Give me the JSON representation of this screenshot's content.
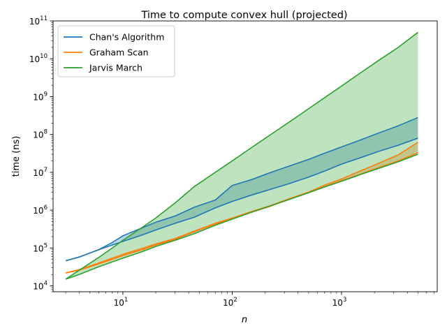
{
  "chart_data": {
    "type": "line",
    "title": "Time to compute convex hull (projected)",
    "xlabel": "n",
    "ylabel": "time (ns)",
    "xscale": "log",
    "yscale": "log",
    "xlim": [
      2.3,
      7500
    ],
    "ylim": [
      7000,
      100000000000
    ],
    "x_ticks": [
      {
        "value": 10,
        "base": "10",
        "exp": "1"
      },
      {
        "value": 100,
        "base": "10",
        "exp": "2"
      },
      {
        "value": 1000,
        "base": "10",
        "exp": "3"
      }
    ],
    "y_ticks": [
      {
        "value": 10000,
        "base": "10",
        "exp": "4"
      },
      {
        "value": 100000,
        "base": "10",
        "exp": "5"
      },
      {
        "value": 1000000,
        "base": "10",
        "exp": "6"
      },
      {
        "value": 10000000,
        "base": "10",
        "exp": "7"
      },
      {
        "value": 100000000,
        "base": "10",
        "exp": "8"
      },
      {
        "value": 1000000000,
        "base": "10",
        "exp": "9"
      },
      {
        "value": 10000000000,
        "base": "10",
        "exp": "10"
      },
      {
        "value": 100000000000,
        "base": "10",
        "exp": "11"
      }
    ],
    "grid": false,
    "legend_position": "top-left",
    "series": [
      {
        "name": "Chan's Algorithm",
        "color": "#1f77b4",
        "fill_alpha": 0.3,
        "x": [
          3,
          4,
          6,
          8,
          10,
          15,
          20,
          30,
          45,
          70,
          100,
          150,
          220,
          330,
          500,
          700,
          1000,
          1500,
          2200,
          3300,
          5000
        ],
        "upper": [
          46000,
          58000,
          90000,
          140000,
          210000,
          340000,
          480000,
          700000,
          1200000,
          1850000,
          4500000,
          6400000,
          9700000,
          14500000,
          22000000,
          32000000,
          47000000,
          72000000,
          110000000,
          170000000,
          280000000
        ],
        "lower": [
          46000,
          58000,
          90000,
          120000,
          150000,
          220000,
          300000,
          450000,
          650000,
          1150000,
          1700000,
          2500000,
          3500000,
          5000000,
          7500000,
          10800000,
          16500000,
          24500000,
          36000000,
          52000000,
          80000000
        ]
      },
      {
        "name": "Graham Scan",
        "color": "#ff7f0e",
        "fill_alpha": 0.3,
        "x": [
          3,
          4,
          6,
          8,
          10,
          15,
          20,
          30,
          45,
          70,
          100,
          150,
          220,
          330,
          500,
          700,
          1000,
          1500,
          2200,
          3300,
          5000
        ],
        "upper": [
          22000,
          27000,
          40000,
          54000,
          68000,
          98000,
          128000,
          178000,
          280000,
          450000,
          620000,
          920000,
          1300000,
          2000000,
          3000000,
          4600000,
          6700000,
          11000000,
          17500000,
          29000000,
          62000000
        ],
        "lower": [
          22000,
          26000,
          38000,
          50000,
          63000,
          90000,
          120000,
          170000,
          270000,
          430000,
          600000,
          880000,
          1250000,
          1950000,
          2900000,
          4200000,
          6000000,
          9000000,
          13500000,
          20000000,
          33000000
        ]
      },
      {
        "name": "Jarvis March",
        "color": "#2ca02c",
        "fill_alpha": 0.3,
        "x": [
          3,
          4,
          6,
          8,
          10,
          15,
          20,
          30,
          45,
          70,
          100,
          150,
          220,
          330,
          500,
          700,
          1000,
          1500,
          2200,
          3300,
          5000
        ],
        "upper": [
          15000,
          26000,
          56000,
          100000,
          160000,
          350000,
          620000,
          1550000,
          4200000,
          10000000,
          20000000,
          45000000,
          95000000,
          210000000,
          480000000,
          940000000,
          1900000000,
          4300000000,
          9200000000,
          20000000000,
          50000000000
        ],
        "lower": [
          15000,
          20000,
          32000,
          43000,
          54000,
          80000,
          110000,
          160000,
          240000,
          400000,
          580000,
          880000,
          1280000,
          1900000,
          2900000,
          4100000,
          5800000,
          8800000,
          12800000,
          19000000,
          30000000
        ]
      }
    ]
  }
}
